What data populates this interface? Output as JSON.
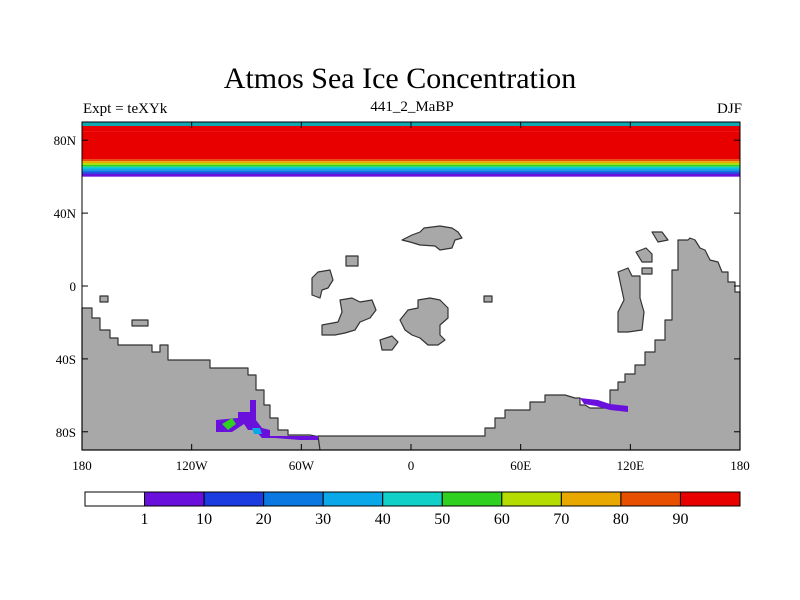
{
  "header": {
    "title": "Atmos Sea Ice Concentration",
    "experiment": "Expt = teXYk",
    "subtitle": "441_2_MaBP",
    "season": "DJF"
  },
  "map": {
    "projection": "cylindrical-equidistant",
    "lon_range": [
      -180,
      180
    ],
    "lat_range": [
      -90,
      90
    ],
    "y_tick_labels": [
      {
        "lat": 80,
        "label": "80N"
      },
      {
        "lat": 40,
        "label": "40N"
      },
      {
        "lat": 0,
        "label": "0"
      },
      {
        "lat": -40,
        "label": "40S"
      },
      {
        "lat": -80,
        "label": "80S"
      }
    ],
    "x_tick_labels": [
      {
        "lon": -180,
        "label": "180"
      },
      {
        "lon": -120,
        "label": "120W"
      },
      {
        "lon": -60,
        "label": "60W"
      },
      {
        "lon": 0,
        "label": "0"
      },
      {
        "lon": 60,
        "label": "60E"
      },
      {
        "lon": 120,
        "label": "120E"
      },
      {
        "lon": 180,
        "label": "180"
      }
    ],
    "land_color": "#a8a8a8",
    "ocean_color": "#ffffff"
  },
  "colorbar": {
    "labels": [
      "1",
      "10",
      "20",
      "30",
      "40",
      "50",
      "60",
      "70",
      "80",
      "90"
    ],
    "colors": [
      "#ffffff",
      "#6a10dd",
      "#1a3ce0",
      "#0a78e0",
      "#0aa8e8",
      "#10d0c8",
      "#30d020",
      "#b4dc00",
      "#e8a800",
      "#e85000",
      "#e80000"
    ]
  },
  "field_bands": [
    {
      "lat_min": 85,
      "lat_max": 90,
      "color": "#e80000"
    },
    {
      "lat_min": 69.5,
      "lat_max": 85,
      "color": "#e80000"
    },
    {
      "lat_min": 68.5,
      "lat_max": 69.5,
      "color": "#e85000"
    },
    {
      "lat_min": 67.5,
      "lat_max": 68.5,
      "color": "#e8a800"
    },
    {
      "lat_min": 66.5,
      "lat_max": 67.5,
      "color": "#b4dc00"
    },
    {
      "lat_min": 65.5,
      "lat_max": 66.5,
      "color": "#30d020"
    },
    {
      "lat_min": 64.5,
      "lat_max": 65.5,
      "color": "#10d0c8"
    },
    {
      "lat_min": 63.5,
      "lat_max": 64.5,
      "color": "#0aa8e8"
    },
    {
      "lat_min": 62.5,
      "lat_max": 63.5,
      "color": "#0a78e0"
    },
    {
      "lat_min": 61.5,
      "lat_max": 62.5,
      "color": "#1a3ce0"
    },
    {
      "lat_min": 60,
      "lat_max": 61.5,
      "color": "#6a10dd"
    }
  ]
}
